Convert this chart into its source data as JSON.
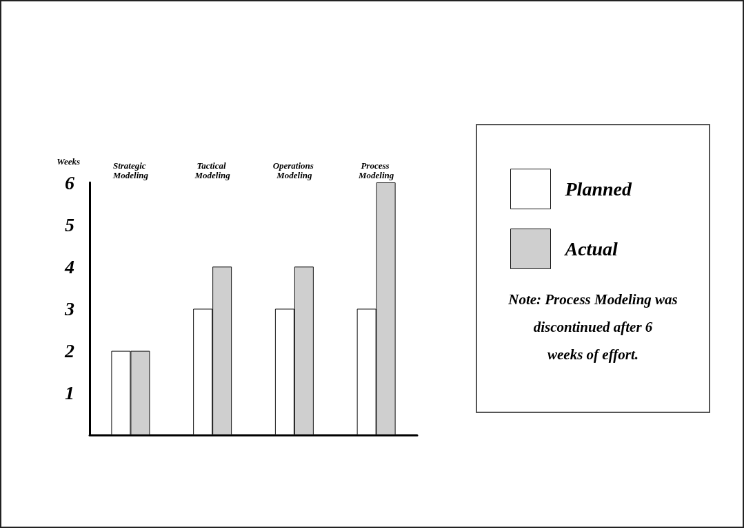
{
  "chart_data": {
    "type": "bar",
    "ylabel": "Weeks",
    "categories": [
      "Strategic Modeling",
      "Tactical Modeling",
      "Operations Modeling",
      "Process Modeling"
    ],
    "series": [
      {
        "name": "Planned",
        "color": "#ffffff",
        "values": [
          2,
          3,
          3,
          3
        ]
      },
      {
        "name": "Actual",
        "color": "#cfcfcf",
        "values": [
          2,
          4,
          4,
          6
        ]
      }
    ],
    "ylim": [
      0,
      6
    ],
    "yticks": [
      1,
      2,
      3,
      4,
      5,
      6
    ],
    "grid": false,
    "legend": "right",
    "annotations": [
      "Note: Process Modeling was discontinued after 6 weeks of effort."
    ]
  }
}
